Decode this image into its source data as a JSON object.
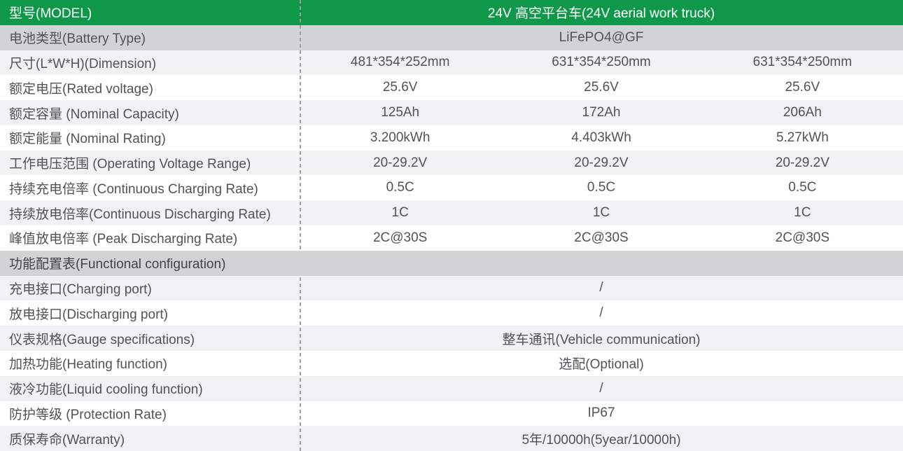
{
  "colors": {
    "header_green": "#10984a",
    "header_text": "#ffffff",
    "row_gray": "#d2d3d5",
    "row_light": "#f1f2f4",
    "row_white": "#ffffff",
    "text": "#515356",
    "section_text": "#404245",
    "divider": "#9fa0a3"
  },
  "table": {
    "rows": [
      {
        "type": "header",
        "label": "型号(MODEL)",
        "values": [
          "24V 高空平台车(24V aerial work truck)"
        ]
      },
      {
        "type": "data",
        "bg": "gray",
        "label": "电池类型(Battery Type)",
        "values": [
          "LiFePO4@GF"
        ]
      },
      {
        "type": "data",
        "bg": "light",
        "label": "尺寸(L*W*H)(Dimension)",
        "values": [
          "481*354*252mm",
          "631*354*250mm",
          "631*354*250mm"
        ]
      },
      {
        "type": "data",
        "bg": "white",
        "label": "额定电压(Rated voltage)",
        "values": [
          "25.6V",
          "25.6V",
          "25.6V"
        ]
      },
      {
        "type": "data",
        "bg": "light",
        "label": "额定容量 (Nominal Capacity)",
        "values": [
          "125Ah",
          "172Ah",
          "206Ah"
        ]
      },
      {
        "type": "data",
        "bg": "white",
        "label": "额定能量 (Nominal Rating)",
        "values": [
          "3.200kWh",
          "4.403kWh",
          "5.27kWh"
        ]
      },
      {
        "type": "data",
        "bg": "light",
        "label": "工作电压范围 (Operating Voltage Range)",
        "values": [
          "20-29.2V",
          "20-29.2V",
          "20-29.2V"
        ]
      },
      {
        "type": "data",
        "bg": "white",
        "label": "持续充电倍率 (Continuous Charging Rate)",
        "values": [
          "0.5C",
          "0.5C",
          "0.5C"
        ]
      },
      {
        "type": "data",
        "bg": "light",
        "label": "持续放电倍率(Continuous Discharging Rate)",
        "values": [
          "1C",
          "1C",
          "1C"
        ]
      },
      {
        "type": "data",
        "bg": "white",
        "label": "峰值放电倍率 (Peak Discharging Rate)",
        "values": [
          "2C@30S",
          "2C@30S",
          "2C@30S"
        ]
      },
      {
        "type": "section",
        "label": "功能配置表(Functional configuration)"
      },
      {
        "type": "data",
        "bg": "light",
        "label": "充电接口(Charging port)",
        "values": [
          "/"
        ]
      },
      {
        "type": "data",
        "bg": "white",
        "label": "放电接口(Discharging port)",
        "values": [
          "/"
        ]
      },
      {
        "type": "data",
        "bg": "light",
        "label": "仪表规格(Gauge specifications)",
        "values": [
          "整车通讯(Vehicle communication)"
        ]
      },
      {
        "type": "data",
        "bg": "white",
        "label": "加热功能(Heating function)",
        "values": [
          "选配(Optional)"
        ]
      },
      {
        "type": "data",
        "bg": "light",
        "label": "液冷功能(Liquid cooling function)",
        "values": [
          "/"
        ]
      },
      {
        "type": "data",
        "bg": "white",
        "label": "防护等级 (Protection Rate)",
        "values": [
          "IP67"
        ]
      },
      {
        "type": "data",
        "bg": "light",
        "label": "质保寿命(Warranty)",
        "values": [
          "5年/10000h(5year/10000h)"
        ]
      }
    ]
  }
}
